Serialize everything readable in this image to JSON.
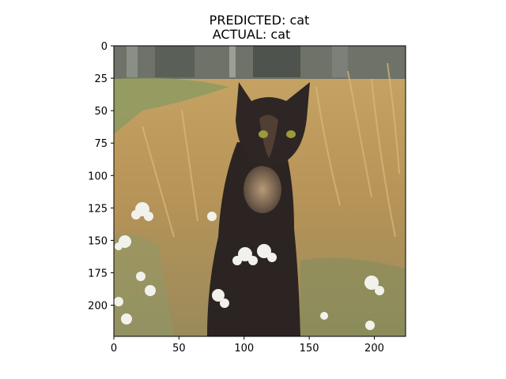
{
  "title": {
    "predicted": "PREDICTED: cat",
    "actual": "ACTUAL: cat"
  },
  "image": {
    "subject": "cat sitting in dry grass with white flowers"
  },
  "chart_data": {
    "type": "image",
    "title": "PREDICTED: cat\nACTUAL: cat",
    "xlim": [
      0,
      224
    ],
    "ylim": [
      224,
      0
    ],
    "x_ticks": [
      0,
      50,
      100,
      150,
      200
    ],
    "y_ticks": [
      0,
      25,
      50,
      75,
      100,
      125,
      150,
      175,
      200
    ],
    "xlabel": "",
    "ylabel": "",
    "grid": false
  }
}
